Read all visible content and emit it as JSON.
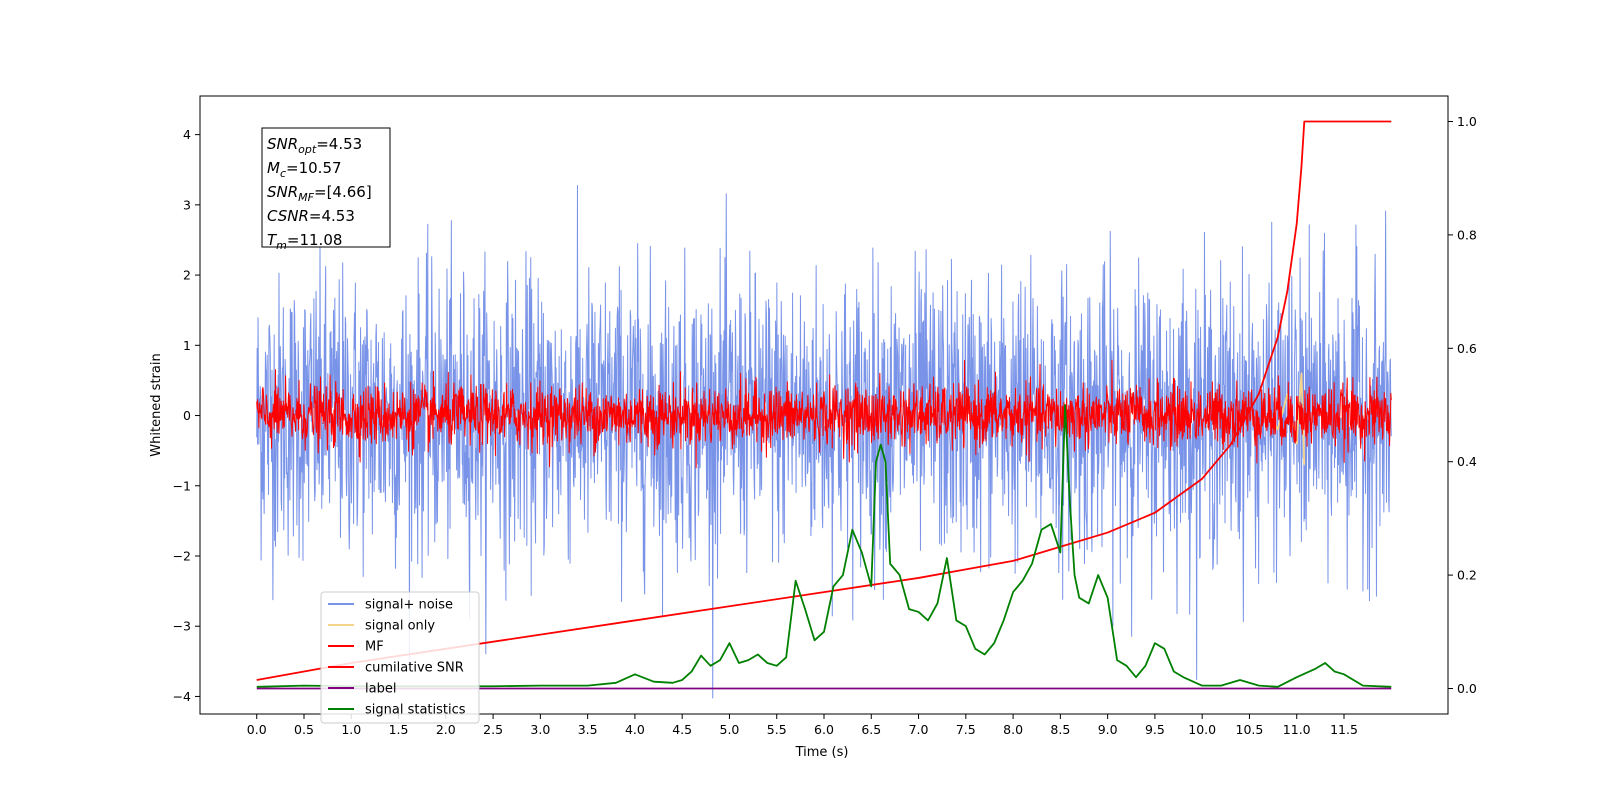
{
  "chart_data": {
    "type": "line",
    "xlabel": "Time (s)",
    "ylabel": "Whitened strain",
    "xlim": [
      -0.6,
      12.6
    ],
    "ylim": [
      -4.25,
      4.55
    ],
    "y2lim": [
      -0.045,
      1.045
    ],
    "xticks": [
      0.0,
      0.5,
      1.0,
      1.5,
      2.0,
      2.5,
      3.0,
      3.5,
      4.0,
      4.5,
      5.0,
      5.5,
      6.0,
      6.5,
      7.0,
      7.5,
      8.0,
      8.5,
      9.0,
      9.5,
      10.0,
      10.5,
      11.0,
      11.5
    ],
    "xtick_labels": [
      "0.0",
      "0.5",
      "1.0",
      "1.5",
      "2.0",
      "2.5",
      "3.0",
      "3.5",
      "4.0",
      "4.5",
      "5.0",
      "5.5",
      "6.0",
      "6.5",
      "7.0",
      "7.5",
      "8.0",
      "8.5",
      "9.0",
      "9.5",
      "10.0",
      "10.5",
      "11.0",
      "11.5"
    ],
    "yticks": [
      -4,
      -3,
      -2,
      -1,
      0,
      1,
      2,
      3,
      4
    ],
    "ytick_labels": [
      "−4",
      "−3",
      "−2",
      "−1",
      "0",
      "1",
      "2",
      "3",
      "4"
    ],
    "y2ticks": [
      0.0,
      0.2,
      0.4,
      0.6,
      0.8,
      1.0
    ],
    "y2tick_labels": [
      "0.0",
      "0.2",
      "0.4",
      "0.6",
      "0.8",
      "1.0"
    ],
    "grid": false,
    "legend_position": "bottom-left",
    "info_box": [
      {
        "sym": "SNR",
        "sub": "opt",
        "val": "=4.53"
      },
      {
        "sym": "M",
        "sub": "c",
        "val": "=10.57"
      },
      {
        "sym": "SNR",
        "sub": "MF",
        "val": "=[4.66]"
      },
      {
        "sym": "CSNR",
        "sub": "",
        "val": "=4.53"
      },
      {
        "sym": "T",
        "sub": "m",
        "val": "=11.08"
      }
    ],
    "series": [
      {
        "name": "signal+ noise",
        "color": "#7893e8",
        "axis": "left",
        "noise_amplitude": 1.0,
        "x_range": [
          0.0,
          12.0
        ]
      },
      {
        "name": "signal only",
        "color": "#f5d58a",
        "axis": "left",
        "x": [
          10.7,
          10.8,
          10.9,
          11.0,
          11.05,
          11.08
        ],
        "y": [
          0.05,
          -0.2,
          0.3,
          -0.4,
          0.6,
          -0.7
        ]
      },
      {
        "name": "MF",
        "color": "#ff0000",
        "axis": "left",
        "noise_amplitude": 0.22,
        "x_range": [
          0.0,
          12.0
        ]
      },
      {
        "name": "cumilative SNR",
        "color": "#ff0000",
        "axis": "right",
        "x": [
          0.0,
          1.0,
          2.0,
          3.0,
          4.0,
          5.0,
          6.0,
          7.0,
          7.5,
          8.0,
          8.5,
          9.0,
          9.5,
          10.0,
          10.3,
          10.6,
          10.8,
          10.9,
          11.0,
          11.05,
          11.08,
          12.0
        ],
        "y": [
          0.015,
          0.045,
          0.07,
          0.095,
          0.12,
          0.145,
          0.17,
          0.195,
          0.21,
          0.225,
          0.25,
          0.275,
          0.31,
          0.37,
          0.43,
          0.52,
          0.62,
          0.7,
          0.82,
          0.92,
          1.0,
          1.0
        ]
      },
      {
        "name": "label",
        "color": "#800080",
        "axis": "right",
        "x": [
          0.0,
          12.0
        ],
        "y": [
          0.0,
          0.0
        ]
      },
      {
        "name": "signal statistics",
        "color": "#008000",
        "axis": "right",
        "x": [
          0.0,
          0.5,
          1.0,
          1.5,
          2.0,
          2.5,
          3.0,
          3.5,
          3.8,
          4.0,
          4.2,
          4.4,
          4.5,
          4.6,
          4.7,
          4.8,
          4.9,
          5.0,
          5.1,
          5.2,
          5.3,
          5.4,
          5.5,
          5.6,
          5.7,
          5.8,
          5.9,
          6.0,
          6.1,
          6.2,
          6.3,
          6.4,
          6.5,
          6.55,
          6.6,
          6.65,
          6.7,
          6.8,
          6.9,
          7.0,
          7.1,
          7.2,
          7.3,
          7.4,
          7.5,
          7.6,
          7.7,
          7.8,
          7.9,
          8.0,
          8.1,
          8.2,
          8.3,
          8.4,
          8.5,
          8.55,
          8.6,
          8.65,
          8.7,
          8.8,
          8.9,
          9.0,
          9.1,
          9.2,
          9.3,
          9.4,
          9.5,
          9.6,
          9.7,
          9.8,
          10.0,
          10.2,
          10.4,
          10.6,
          10.8,
          11.0,
          11.2,
          11.3,
          11.4,
          11.5,
          11.7,
          12.0
        ],
        "y": [
          0.003,
          0.005,
          0.004,
          0.004,
          0.004,
          0.004,
          0.005,
          0.005,
          0.01,
          0.025,
          0.012,
          0.01,
          0.015,
          0.03,
          0.058,
          0.04,
          0.05,
          0.08,
          0.045,
          0.05,
          0.06,
          0.045,
          0.04,
          0.055,
          0.19,
          0.14,
          0.085,
          0.1,
          0.18,
          0.2,
          0.28,
          0.24,
          0.18,
          0.4,
          0.43,
          0.4,
          0.22,
          0.2,
          0.14,
          0.135,
          0.12,
          0.15,
          0.23,
          0.12,
          0.11,
          0.07,
          0.06,
          0.08,
          0.12,
          0.17,
          0.19,
          0.22,
          0.28,
          0.29,
          0.24,
          0.5,
          0.33,
          0.2,
          0.16,
          0.15,
          0.2,
          0.16,
          0.05,
          0.04,
          0.02,
          0.04,
          0.08,
          0.07,
          0.03,
          0.02,
          0.005,
          0.005,
          0.015,
          0.005,
          0.003,
          0.02,
          0.035,
          0.045,
          0.03,
          0.025,
          0.005,
          0.003
        ]
      }
    ]
  }
}
